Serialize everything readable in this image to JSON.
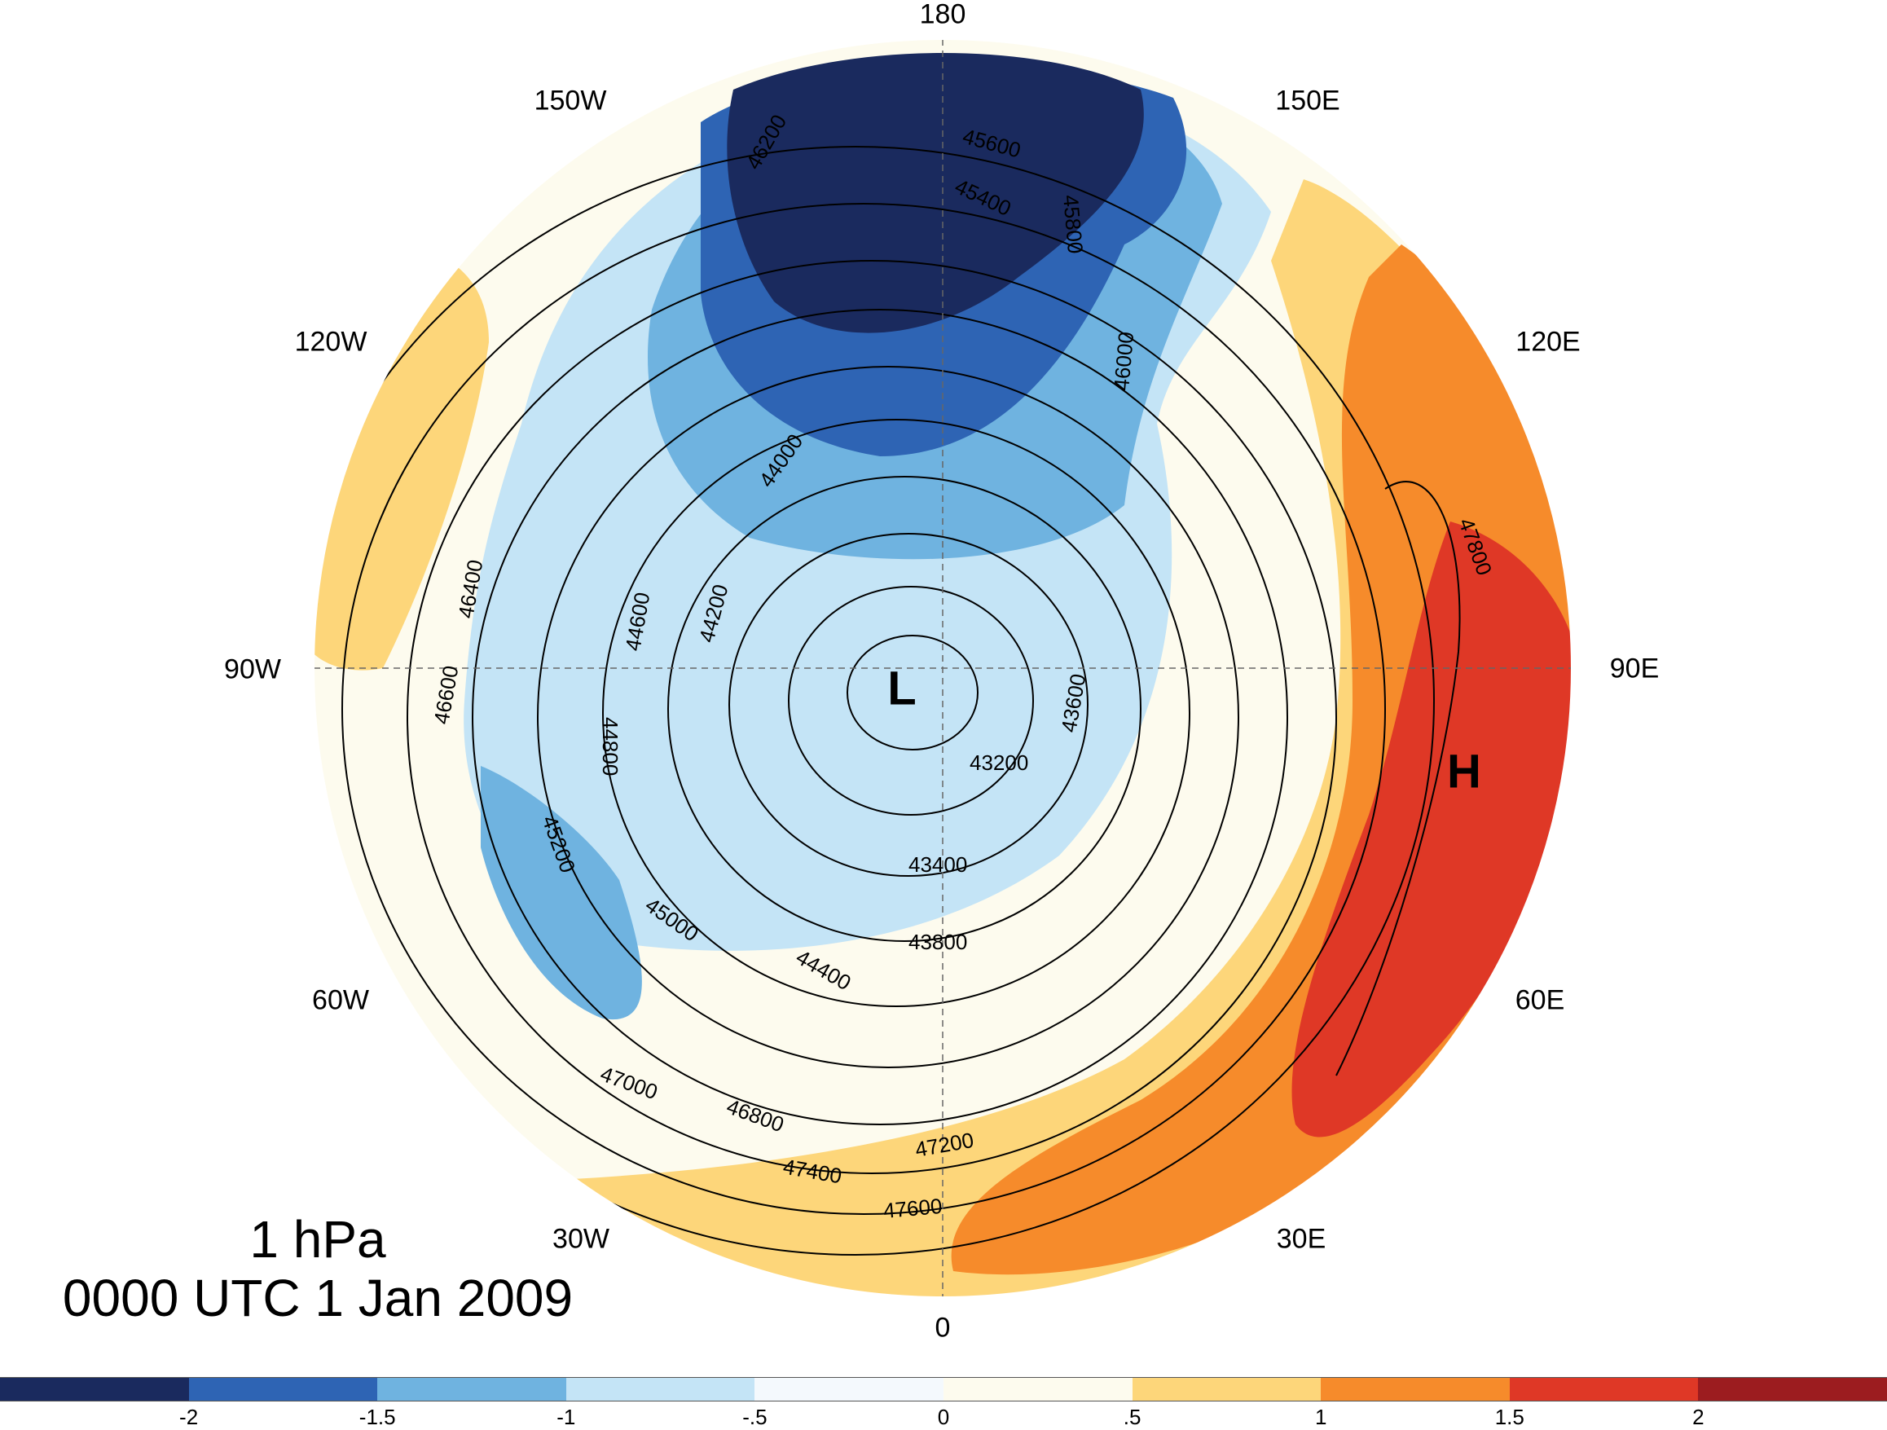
{
  "map": {
    "projection": "north polar stereographic",
    "title_level": "1 hPa",
    "title_time": "0000 UTC 1 Jan 2009",
    "longitude_labels": [
      "180",
      "150E",
      "120E",
      "90E",
      "60E",
      "30E",
      "0",
      "30W",
      "60W",
      "90W",
      "120W",
      "150W"
    ],
    "low_marker": "L",
    "high_marker": "H",
    "contour_labels": [
      "43200",
      "43400",
      "43600",
      "43800",
      "44000",
      "44200",
      "44400",
      "44600",
      "44800",
      "45000",
      "45200",
      "45400",
      "45600",
      "45800",
      "46000",
      "46200",
      "46400",
      "46600",
      "46800",
      "47000",
      "47200",
      "47400",
      "47600",
      "47800"
    ]
  },
  "colorbar": {
    "colors": [
      "#1a2a5e",
      "#2e64b4",
      "#6fb3e0",
      "#c4e4f6",
      "#f4f9fd",
      "#fdfbee",
      "#fdd67a",
      "#f68b2b",
      "#df3826",
      "#9c1c1f"
    ],
    "tick_labels": [
      "-2",
      "-1.5",
      "-1",
      "-.5",
      "0",
      ".5",
      "1",
      "1.5",
      "2"
    ]
  }
}
